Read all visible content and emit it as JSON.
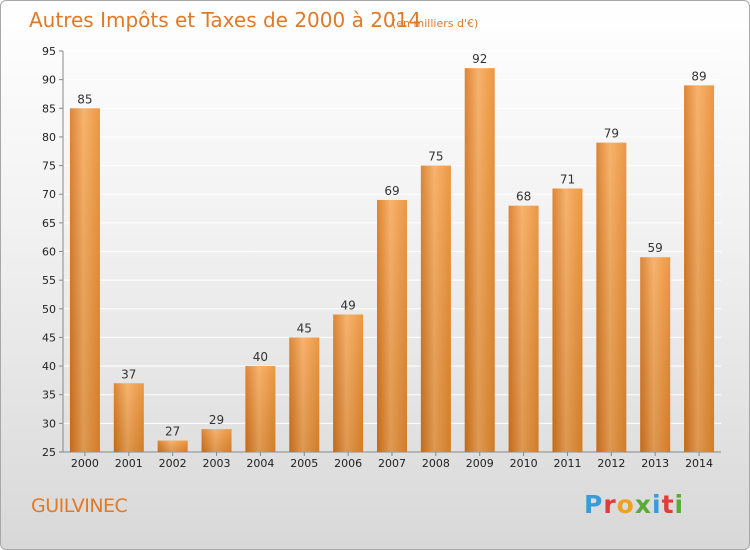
{
  "header": {
    "title": "Autres Impôts et Taxes de 2000 à 2014",
    "subtitle": "(en milliers d'€)"
  },
  "footer": {
    "commune": "GUILVINEC",
    "logo_letters": [
      "P",
      "r",
      "o",
      "x",
      "i",
      "t",
      "i"
    ],
    "logo_colors": [
      "#3b9ad9",
      "#e03c3c",
      "#f0a020",
      "#5aaa3a",
      "#3b9ad9",
      "#e03c3c",
      "#5aaa3a"
    ]
  },
  "colors": {
    "bar": "#e98a2a",
    "bar_light": "#f6a95a",
    "bar_dark": "#d8751c",
    "grid": "#ffffff",
    "axis_text": "#222222",
    "title": "#e07a28"
  },
  "chart_data": {
    "type": "bar",
    "categories": [
      "2000",
      "2001",
      "2002",
      "2003",
      "2004",
      "2005",
      "2006",
      "2007",
      "2008",
      "2009",
      "2010",
      "2011",
      "2012",
      "2013",
      "2014"
    ],
    "values": [
      85,
      37,
      27,
      29,
      40,
      45,
      49,
      69,
      75,
      92,
      68,
      71,
      79,
      59,
      89
    ],
    "title": "Autres Impôts et Taxes de 2000 à 2014",
    "subtitle": "(en milliers d'€)",
    "xlabel": "",
    "ylabel": "",
    "ylim": [
      25,
      95
    ],
    "yticks": [
      25,
      30,
      35,
      40,
      45,
      50,
      55,
      60,
      65,
      70,
      75,
      80,
      85,
      90,
      95
    ],
    "grid": true,
    "data_labels": true
  }
}
